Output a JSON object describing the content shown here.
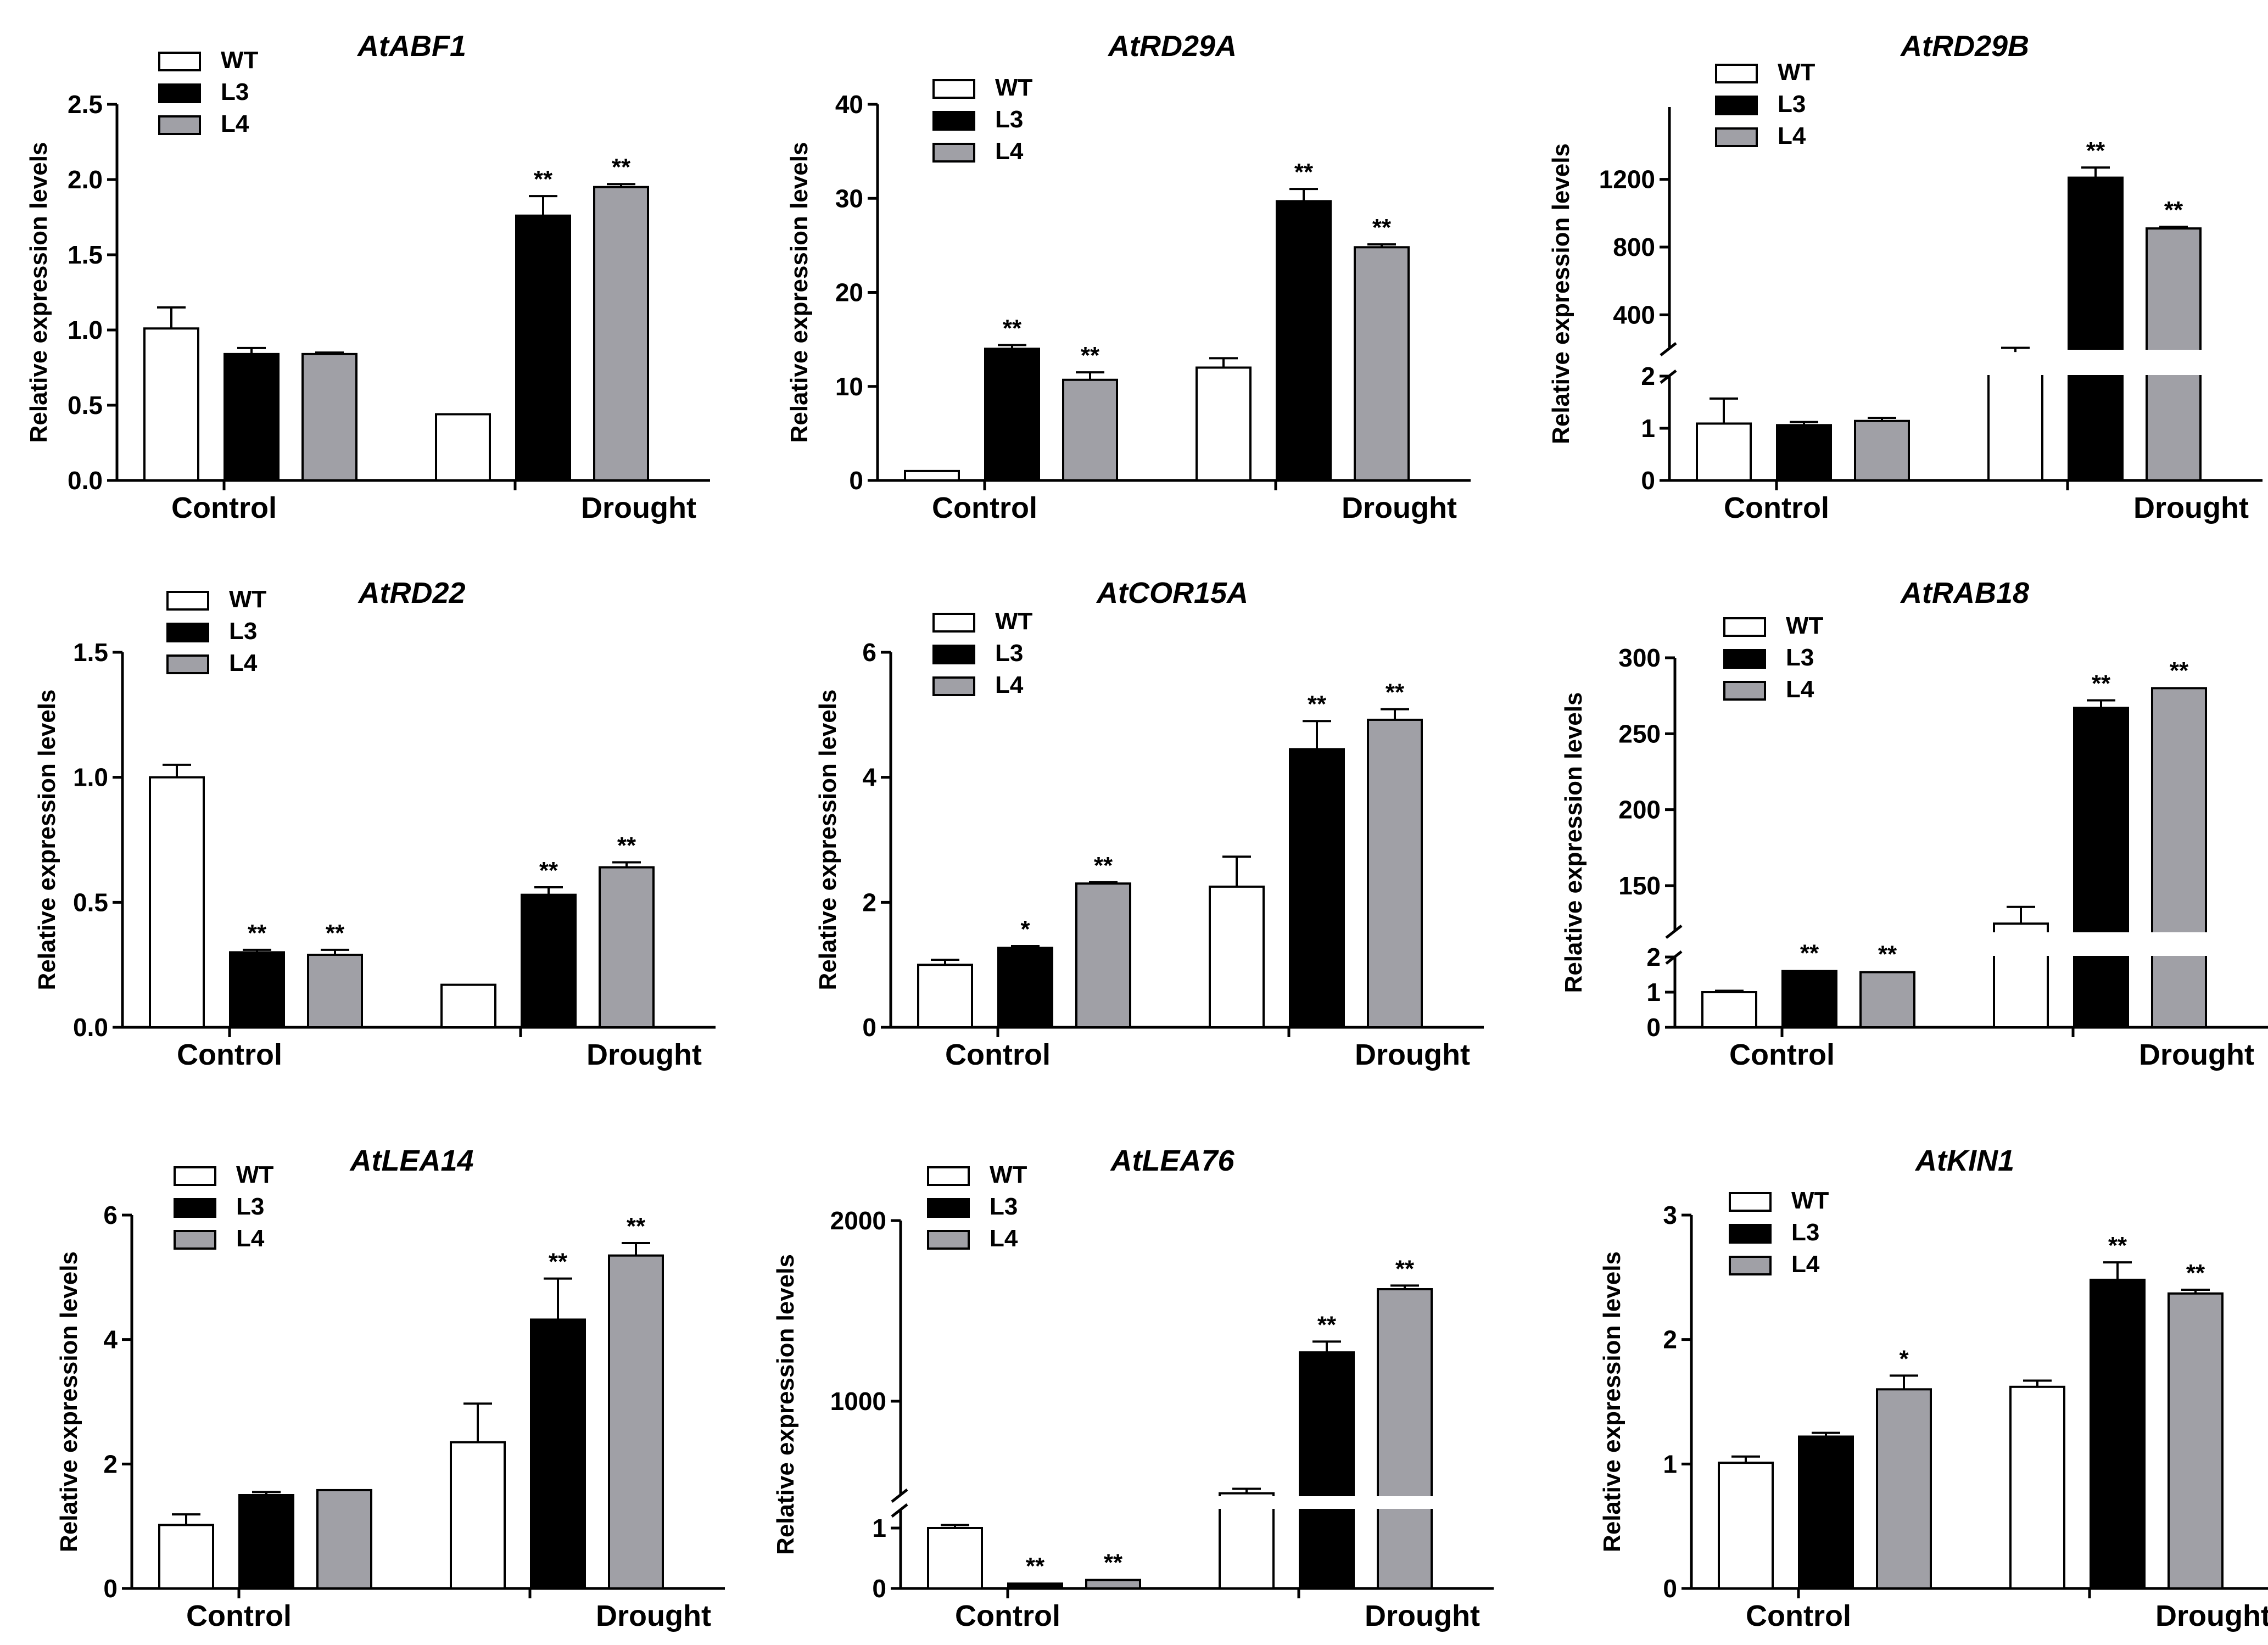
{
  "figure": {
    "groups": [
      "Control",
      "Drought"
    ],
    "series_names": [
      "WT",
      "L3",
      "L4"
    ],
    "series_colors": [
      "#ffffff",
      "#000000",
      "#a0a0a6"
    ],
    "ylabel": "Relative expression levels"
  },
  "chart_data": [
    {
      "type": "bar",
      "title": "AtABF1",
      "xlabel": "",
      "ylabel": "Relative expression levels",
      "categories": [
        "Control",
        "Drought"
      ],
      "ylim": [
        0,
        2.5
      ],
      "yticks": [
        "0.0",
        "0.5",
        "1.0",
        "1.5",
        "2.0",
        "2.5"
      ],
      "series": [
        {
          "name": "WT",
          "values": [
            1.01,
            0.44
          ],
          "errors": [
            0.14,
            0.005
          ],
          "sig": [
            "",
            ""
          ]
        },
        {
          "name": "L3",
          "values": [
            0.84,
            1.76
          ],
          "errors": [
            0.04,
            0.13
          ],
          "sig": [
            "",
            "**"
          ]
        },
        {
          "name": "L4",
          "values": [
            0.84,
            1.95
          ],
          "errors": [
            0.01,
            0.02
          ],
          "sig": [
            "",
            "**"
          ]
        }
      ]
    },
    {
      "type": "bar",
      "title": "AtRD29A",
      "xlabel": "",
      "ylabel": "Relative expression levels",
      "categories": [
        "Control",
        "Drought"
      ],
      "ylim": [
        0,
        40
      ],
      "yticks": [
        "0",
        "10",
        "20",
        "30",
        "40"
      ],
      "series": [
        {
          "name": "WT",
          "values": [
            1.0,
            12.0
          ],
          "errors": [
            0.1,
            1.0
          ],
          "sig": [
            "",
            ""
          ]
        },
        {
          "name": "L3",
          "values": [
            14.0,
            29.7
          ],
          "errors": [
            0.4,
            1.3
          ],
          "sig": [
            "**",
            "**"
          ]
        },
        {
          "name": "L4",
          "values": [
            10.7,
            24.8
          ],
          "errors": [
            0.8,
            0.3
          ],
          "sig": [
            "**",
            "**"
          ]
        }
      ]
    },
    {
      "type": "bar",
      "title": "AtRD29B",
      "xlabel": "",
      "ylabel": "Relative expression levels",
      "categories": [
        "Control",
        "Drought"
      ],
      "broken_axis": true,
      "yticks": [
        "0",
        "1",
        "2",
        "400",
        "800",
        "1200"
      ],
      "series": [
        {
          "name": "WT",
          "values": [
            1.09,
            180
          ],
          "errors": [
            0.48,
            25
          ],
          "sig": [
            "",
            ""
          ]
        },
        {
          "name": "L3",
          "values": [
            1.06,
            1210
          ],
          "errors": [
            0.06,
            60
          ],
          "sig": [
            "",
            "**"
          ]
        },
        {
          "name": "L4",
          "values": [
            1.14,
            910
          ],
          "errors": [
            0.06,
            10
          ],
          "sig": [
            "",
            "**"
          ]
        }
      ]
    },
    {
      "type": "bar",
      "title": "AtRD22",
      "xlabel": "",
      "ylabel": "Relative expression levels",
      "categories": [
        "Control",
        "Drought"
      ],
      "ylim": [
        0,
        1.5
      ],
      "yticks": [
        "0.0",
        "0.5",
        "1.0",
        "1.5"
      ],
      "series": [
        {
          "name": "WT",
          "values": [
            1.0,
            0.17
          ],
          "errors": [
            0.05,
            0.003
          ],
          "sig": [
            "",
            ""
          ]
        },
        {
          "name": "L3",
          "values": [
            0.3,
            0.53
          ],
          "errors": [
            0.01,
            0.03
          ],
          "sig": [
            "**",
            "**"
          ]
        },
        {
          "name": "L4",
          "values": [
            0.29,
            0.64
          ],
          "errors": [
            0.02,
            0.02
          ],
          "sig": [
            "**",
            "**"
          ]
        }
      ]
    },
    {
      "type": "bar",
      "title": "AtCOR15A",
      "xlabel": "",
      "ylabel": "Relative expression levels",
      "categories": [
        "Control",
        "Drought"
      ],
      "ylim": [
        0,
        6
      ],
      "yticks": [
        "0",
        "2",
        "4",
        "6"
      ],
      "series": [
        {
          "name": "WT",
          "values": [
            1.0,
            2.25
          ],
          "errors": [
            0.08,
            0.48
          ],
          "sig": [
            "",
            ""
          ]
        },
        {
          "name": "L3",
          "values": [
            1.27,
            4.45
          ],
          "errors": [
            0.03,
            0.45
          ],
          "sig": [
            "*",
            "**"
          ]
        },
        {
          "name": "L4",
          "values": [
            2.3,
            4.92
          ],
          "errors": [
            0.02,
            0.17
          ],
          "sig": [
            "**",
            "**"
          ]
        }
      ]
    },
    {
      "type": "bar",
      "title": "AtRAB18",
      "xlabel": "",
      "ylabel": "Relative expression levels",
      "categories": [
        "Control",
        "Drought"
      ],
      "broken_axis": true,
      "yticks": [
        "0",
        "1",
        "2",
        "150",
        "200",
        "250",
        "300"
      ],
      "series": [
        {
          "name": "WT",
          "values": [
            1.0,
            125
          ],
          "errors": [
            0.04,
            11
          ],
          "sig": [
            "",
            ""
          ]
        },
        {
          "name": "L3",
          "values": [
            1.6,
            267
          ],
          "errors": [
            0.03,
            5
          ],
          "sig": [
            "**",
            "**"
          ]
        },
        {
          "name": "L4",
          "values": [
            1.57,
            280
          ],
          "errors": [
            0.03,
            0.5
          ],
          "sig": [
            "**",
            "**"
          ]
        }
      ]
    },
    {
      "type": "bar",
      "title": "AtLEA14",
      "xlabel": "",
      "ylabel": "Relative expression levels",
      "categories": [
        "Control",
        "Drought"
      ],
      "ylim": [
        0,
        6
      ],
      "yticks": [
        "0",
        "2",
        "4",
        "6"
      ],
      "series": [
        {
          "name": "WT",
          "values": [
            1.02,
            2.35
          ],
          "errors": [
            0.17,
            0.62
          ],
          "sig": [
            "",
            ""
          ]
        },
        {
          "name": "L3",
          "values": [
            1.5,
            4.32
          ],
          "errors": [
            0.05,
            0.66
          ],
          "sig": [
            "",
            "**"
          ]
        },
        {
          "name": "L4",
          "values": [
            1.58,
            5.35
          ],
          "errors": [
            0.01,
            0.2
          ],
          "sig": [
            "",
            "**"
          ]
        }
      ]
    },
    {
      "type": "bar",
      "title": "AtLEA76",
      "xlabel": "",
      "ylabel": "Relative expression levels",
      "categories": [
        "Control",
        "Drought"
      ],
      "broken_axis": true,
      "yticks": [
        "0",
        "1",
        "1000",
        "2000"
      ],
      "series": [
        {
          "name": "WT",
          "values": [
            1.0,
            490
          ],
          "errors": [
            0.05,
            25
          ],
          "sig": [
            "",
            ""
          ]
        },
        {
          "name": "L3",
          "values": [
            0.08,
            1270
          ],
          "errors": [
            0.01,
            60
          ],
          "sig": [
            "**",
            "**"
          ]
        },
        {
          "name": "L4",
          "values": [
            0.14,
            1620
          ],
          "errors": [
            0.01,
            20
          ],
          "sig": [
            "**",
            "**"
          ]
        }
      ]
    },
    {
      "type": "bar",
      "title": "AtKIN1",
      "xlabel": "",
      "ylabel": "Relative expression levels",
      "categories": [
        "Control",
        "Drought"
      ],
      "ylim": [
        0,
        3
      ],
      "yticks": [
        "0",
        "1",
        "2",
        "3"
      ],
      "series": [
        {
          "name": "WT",
          "values": [
            1.01,
            1.62
          ],
          "errors": [
            0.05,
            0.05
          ],
          "sig": [
            "",
            ""
          ]
        },
        {
          "name": "L3",
          "values": [
            1.22,
            2.48
          ],
          "errors": [
            0.03,
            0.14
          ],
          "sig": [
            "",
            "**"
          ]
        },
        {
          "name": "L4",
          "values": [
            1.6,
            2.37
          ],
          "errors": [
            0.11,
            0.03
          ],
          "sig": [
            "*",
            "**"
          ]
        }
      ]
    }
  ]
}
